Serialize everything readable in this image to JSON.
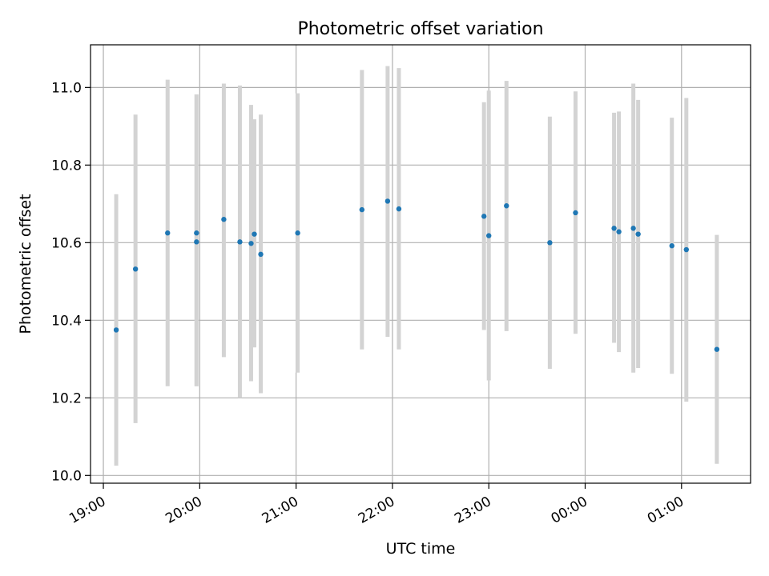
{
  "chart_data": {
    "type": "scatter",
    "title": "Photometric offset variation",
    "xlabel": "UTC time",
    "ylabel": "Photometric offset",
    "x_tick_labels": [
      "19:00",
      "20:00",
      "21:00",
      "22:00",
      "23:00",
      "00:00",
      "01:00"
    ],
    "y_tick_labels": [
      "10.0",
      "10.2",
      "10.4",
      "10.6",
      "10.8",
      "11.0"
    ],
    "x_ticks": [
      "19:00",
      "20:00",
      "21:00",
      "22:00",
      "23:00",
      "00:00",
      "01:00"
    ],
    "y_ticks": [
      10.0,
      10.2,
      10.4,
      10.6,
      10.8,
      11.0
    ],
    "xlim": [
      "18:52",
      "01:43"
    ],
    "ylim": [
      9.98,
      11.11
    ],
    "grid": true,
    "errorbar_color": "#d3d3d3",
    "point_color": "#1f77b4",
    "points": [
      {
        "x": "19:08",
        "y": 10.375,
        "err_low": 10.025,
        "err_high": 10.725
      },
      {
        "x": "19:20",
        "y": 10.532,
        "err_low": 10.135,
        "err_high": 10.93
      },
      {
        "x": "19:40",
        "y": 10.625,
        "err_low": 10.23,
        "err_high": 11.02
      },
      {
        "x": "19:58",
        "y": 10.602,
        "err_low": 10.23,
        "err_high": 10.982
      },
      {
        "x": "19:58",
        "y": 10.625,
        "err_low": 10.23,
        "err_high": 10.982
      },
      {
        "x": "20:15",
        "y": 10.66,
        "err_low": 10.305,
        "err_high": 11.01
      },
      {
        "x": "20:25",
        "y": 10.602,
        "err_low": 10.2,
        "err_high": 11.005
      },
      {
        "x": "20:32",
        "y": 10.598,
        "err_low": 10.243,
        "err_high": 10.955
      },
      {
        "x": "20:34",
        "y": 10.622,
        "err_low": 10.33,
        "err_high": 10.918
      },
      {
        "x": "20:38",
        "y": 10.57,
        "err_low": 10.212,
        "err_high": 10.93
      },
      {
        "x": "21:01",
        "y": 10.625,
        "err_low": 10.265,
        "err_high": 10.985
      },
      {
        "x": "21:41",
        "y": 10.685,
        "err_low": 10.325,
        "err_high": 11.045
      },
      {
        "x": "21:57",
        "y": 10.707,
        "err_low": 10.357,
        "err_high": 11.055
      },
      {
        "x": "22:04",
        "y": 10.687,
        "err_low": 10.325,
        "err_high": 11.05
      },
      {
        "x": "22:57",
        "y": 10.668,
        "err_low": 10.375,
        "err_high": 10.962
      },
      {
        "x": "23:00",
        "y": 10.618,
        "err_low": 10.245,
        "err_high": 10.992
      },
      {
        "x": "23:11",
        "y": 10.695,
        "err_low": 10.372,
        "err_high": 11.017
      },
      {
        "x": "23:38",
        "y": 10.6,
        "err_low": 10.275,
        "err_high": 10.925
      },
      {
        "x": "23:54",
        "y": 10.677,
        "err_low": 10.365,
        "err_high": 10.99
      },
      {
        "x": "00:18",
        "y": 10.637,
        "err_low": 10.342,
        "err_high": 10.935
      },
      {
        "x": "00:21",
        "y": 10.628,
        "err_low": 10.318,
        "err_high": 10.938
      },
      {
        "x": "00:30",
        "y": 10.637,
        "err_low": 10.265,
        "err_high": 11.01
      },
      {
        "x": "00:33",
        "y": 10.622,
        "err_low": 10.277,
        "err_high": 10.968
      },
      {
        "x": "00:54",
        "y": 10.592,
        "err_low": 10.262,
        "err_high": 10.922
      },
      {
        "x": "01:03",
        "y": 10.582,
        "err_low": 10.19,
        "err_high": 10.973
      },
      {
        "x": "01:22",
        "y": 10.325,
        "err_low": 10.03,
        "err_high": 10.62
      }
    ]
  }
}
